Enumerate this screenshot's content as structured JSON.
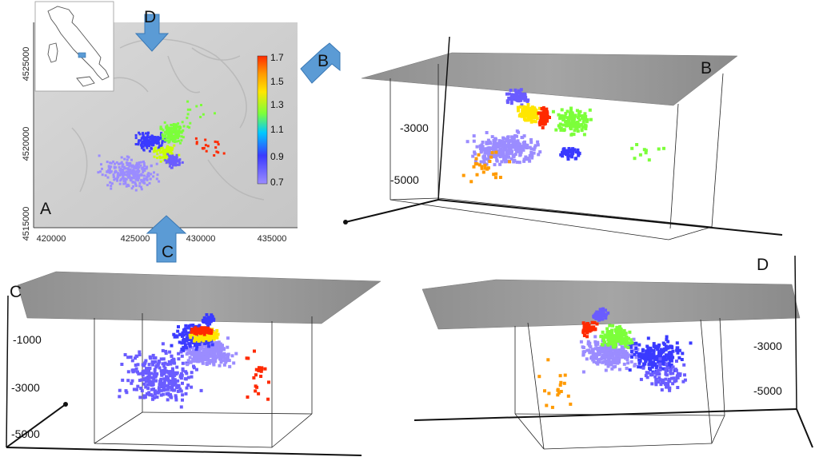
{
  "colors": {
    "scale": [
      "#9b8cff",
      "#6a5cff",
      "#3a3aff",
      "#1a7cff",
      "#00c8ff",
      "#7cff3a",
      "#c8ff00",
      "#ffe600",
      "#ff9a00",
      "#ff2a00"
    ],
    "arrow": "#5b9bd5",
    "surface": "#9a9a9a"
  },
  "panels": {
    "a": {
      "label": "A"
    },
    "b": {
      "label": "B"
    },
    "c": {
      "label": "C"
    },
    "d": {
      "label": "D"
    }
  },
  "arrows": {
    "d": "D",
    "b": "B",
    "c": "C"
  },
  "chart_data": [
    {
      "type": "scatter",
      "panel": "A",
      "x_ticks": [
        "420000",
        "425000",
        "430000",
        "435000"
      ],
      "y_ticks": [
        "4515000",
        "4520000",
        "4525000"
      ],
      "colorbar": {
        "ticks": [
          "1.7",
          "1.5",
          "1.3",
          "1.1",
          "0.9",
          "0.7"
        ],
        "range": [
          0.7,
          1.7
        ]
      },
      "inset": "italy-location-map"
    },
    {
      "type": "scatter",
      "panel": "B",
      "z_ticks": [
        "-3000",
        "-5000"
      ]
    },
    {
      "type": "scatter",
      "panel": "C",
      "z_ticks": [
        "-1000",
        "-3000",
        "-5000"
      ]
    },
    {
      "type": "scatter",
      "panel": "D",
      "z_ticks": [
        "-3000",
        "-5000"
      ]
    }
  ]
}
